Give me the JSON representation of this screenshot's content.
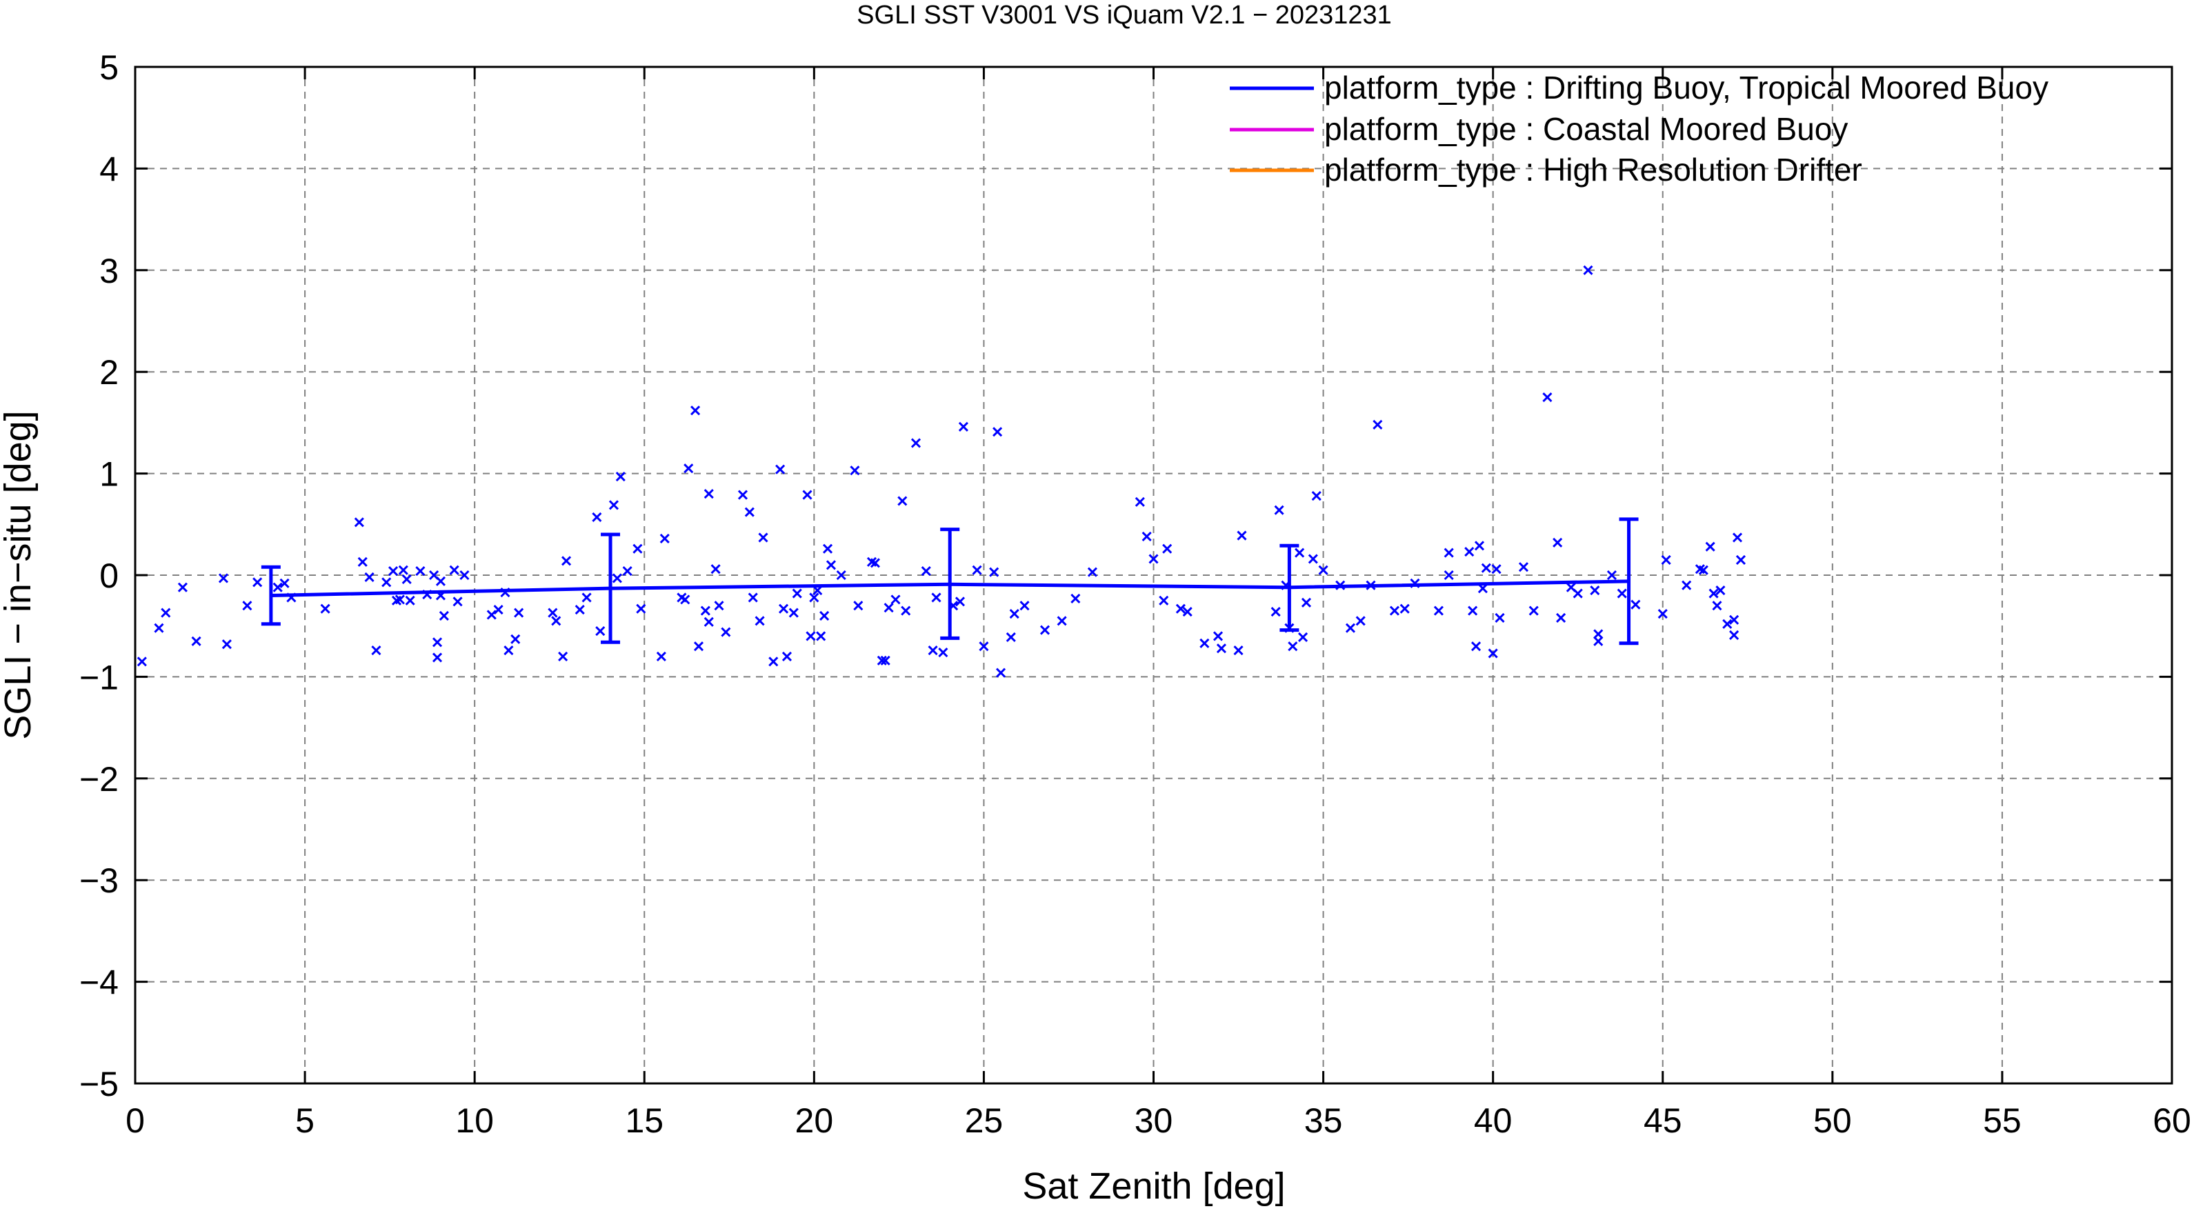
{
  "chart_data": {
    "type": "scatter",
    "title": "SGLI SST V3001 VS iQuam V2.1  − 20231231",
    "xlabel": "Sat Zenith [deg]",
    "ylabel": "SGLI − in−situ [deg]",
    "xlim": [
      0,
      60
    ],
    "ylim": [
      -5,
      5
    ],
    "x_ticks": [
      0,
      5,
      10,
      15,
      20,
      25,
      30,
      35,
      40,
      45,
      50,
      55,
      60
    ],
    "y_ticks": [
      -5,
      -4,
      -3,
      -2,
      -1,
      0,
      1,
      2,
      3,
      4,
      5
    ],
    "x_tick_labels": [
      "0",
      "5",
      "10",
      "15",
      "20",
      "25",
      "30",
      "35",
      "40",
      "45",
      "50",
      "55",
      "60"
    ],
    "y_tick_labels": [
      "−5",
      "−4",
      "−3",
      "−2",
      "−1",
      "0",
      "1",
      "2",
      "3",
      "4",
      "5"
    ],
    "grid": true,
    "legend_position": "top-right",
    "legend": [
      {
        "label": "platform_type : Drifting Buoy, Tropical Moored Buoy",
        "color": "#0000ff"
      },
      {
        "label": "platform_type : Coastal Moored Buoy",
        "color": "#e000e0"
      },
      {
        "label": "platform_type : High Resolution Drifter",
        "color": "#ff8000"
      }
    ],
    "series": [
      {
        "name": "platform_type : Drifting Buoy, Tropical Moored Buoy",
        "color": "#0000ff",
        "marker": "x",
        "points": [
          [
            0.2,
            -0.85
          ],
          [
            0.7,
            -0.52
          ],
          [
            0.9,
            -0.37
          ],
          [
            1.4,
            -0.12
          ],
          [
            1.8,
            -0.65
          ],
          [
            2.6,
            -0.03
          ],
          [
            2.7,
            -0.68
          ],
          [
            3.3,
            -0.3
          ],
          [
            3.6,
            -0.07
          ],
          [
            4.2,
            -0.12
          ],
          [
            4.4,
            -0.08
          ],
          [
            4.6,
            -0.22
          ],
          [
            5.6,
            -0.33
          ],
          [
            6.6,
            0.52
          ],
          [
            6.7,
            0.13
          ],
          [
            6.9,
            -0.02
          ],
          [
            7.1,
            -0.74
          ],
          [
            7.4,
            -0.07
          ],
          [
            7.6,
            0.04
          ],
          [
            7.7,
            -0.25
          ],
          [
            7.8,
            -0.24
          ],
          [
            7.9,
            0.05
          ],
          [
            8.0,
            -0.04
          ],
          [
            8.1,
            -0.25
          ],
          [
            8.4,
            0.04
          ],
          [
            8.6,
            -0.19
          ],
          [
            8.8,
            0.0
          ],
          [
            8.9,
            -0.66
          ],
          [
            8.9,
            -0.81
          ],
          [
            9.0,
            -0.06
          ],
          [
            9.1,
            -0.4
          ],
          [
            9.0,
            -0.2
          ],
          [
            9.4,
            0.05
          ],
          [
            9.5,
            -0.26
          ],
          [
            9.7,
            0.0
          ],
          [
            10.5,
            -0.39
          ],
          [
            10.7,
            -0.34
          ],
          [
            10.9,
            -0.17
          ],
          [
            11.0,
            -0.74
          ],
          [
            11.2,
            -0.63
          ],
          [
            11.3,
            -0.37
          ],
          [
            12.3,
            -0.37
          ],
          [
            12.4,
            -0.45
          ],
          [
            12.6,
            -0.8
          ],
          [
            12.7,
            0.14
          ],
          [
            13.1,
            -0.34
          ],
          [
            13.3,
            -0.22
          ],
          [
            13.6,
            0.57
          ],
          [
            13.7,
            -0.55
          ],
          [
            14.1,
            0.69
          ],
          [
            14.2,
            -0.03
          ],
          [
            14.3,
            0.97
          ],
          [
            14.5,
            0.04
          ],
          [
            14.8,
            0.26
          ],
          [
            14.9,
            -0.33
          ],
          [
            15.5,
            -0.8
          ],
          [
            15.6,
            0.36
          ],
          [
            16.1,
            -0.22
          ],
          [
            16.2,
            -0.24
          ],
          [
            16.3,
            1.05
          ],
          [
            16.5,
            1.62
          ],
          [
            16.6,
            -0.7
          ],
          [
            16.8,
            -0.35
          ],
          [
            16.9,
            -0.46
          ],
          [
            16.9,
            0.8
          ],
          [
            17.1,
            0.06
          ],
          [
            17.2,
            -0.3
          ],
          [
            17.4,
            -0.56
          ],
          [
            17.9,
            0.79
          ],
          [
            18.1,
            0.62
          ],
          [
            18.2,
            -0.22
          ],
          [
            18.5,
            0.37
          ],
          [
            18.4,
            -0.45
          ],
          [
            18.8,
            -0.85
          ],
          [
            19.0,
            1.04
          ],
          [
            19.1,
            -0.33
          ],
          [
            19.2,
            -0.8
          ],
          [
            19.4,
            -0.37
          ],
          [
            19.5,
            -0.18
          ],
          [
            19.8,
            0.79
          ],
          [
            19.9,
            -0.6
          ],
          [
            20.0,
            -0.22
          ],
          [
            20.1,
            -0.15
          ],
          [
            20.2,
            -0.6
          ],
          [
            20.3,
            -0.4
          ],
          [
            20.4,
            0.26
          ],
          [
            20.5,
            0.1
          ],
          [
            20.8,
            0.0
          ],
          [
            21.2,
            1.03
          ],
          [
            21.3,
            -0.3
          ],
          [
            21.7,
            0.13
          ],
          [
            21.8,
            0.12
          ],
          [
            22.0,
            -0.84
          ],
          [
            22.1,
            -0.84
          ],
          [
            22.2,
            -0.32
          ],
          [
            22.4,
            -0.24
          ],
          [
            22.6,
            0.73
          ],
          [
            22.7,
            -0.35
          ],
          [
            23.0,
            1.3
          ],
          [
            23.3,
            0.04
          ],
          [
            23.5,
            -0.74
          ],
          [
            23.6,
            -0.22
          ],
          [
            23.8,
            -0.76
          ],
          [
            24.1,
            -0.3
          ],
          [
            24.3,
            -0.26
          ],
          [
            24.4,
            1.46
          ],
          [
            24.8,
            0.05
          ],
          [
            25.0,
            -0.7
          ],
          [
            25.3,
            0.03
          ],
          [
            25.4,
            1.41
          ],
          [
            25.5,
            -0.96
          ],
          [
            25.8,
            -0.61
          ],
          [
            25.9,
            -0.38
          ],
          [
            26.2,
            -0.3
          ],
          [
            26.8,
            -0.54
          ],
          [
            27.3,
            -0.45
          ],
          [
            27.7,
            -0.23
          ],
          [
            28.2,
            0.03
          ],
          [
            29.6,
            0.72
          ],
          [
            29.8,
            0.38
          ],
          [
            30.0,
            0.16
          ],
          [
            30.3,
            -0.25
          ],
          [
            30.4,
            0.26
          ],
          [
            30.8,
            -0.33
          ],
          [
            31.0,
            -0.36
          ],
          [
            31.5,
            -0.67
          ],
          [
            31.9,
            -0.6
          ],
          [
            32.0,
            -0.72
          ],
          [
            32.5,
            -0.74
          ],
          [
            32.6,
            0.39
          ],
          [
            33.6,
            -0.36
          ],
          [
            33.7,
            0.64
          ],
          [
            33.9,
            -0.1
          ],
          [
            34.0,
            -0.52
          ],
          [
            34.1,
            -0.7
          ],
          [
            34.3,
            0.22
          ],
          [
            34.4,
            -0.61
          ],
          [
            34.5,
            -0.27
          ],
          [
            34.7,
            0.16
          ],
          [
            34.8,
            0.78
          ],
          [
            35.0,
            0.05
          ],
          [
            35.5,
            -0.1
          ],
          [
            35.8,
            -0.52
          ],
          [
            36.1,
            -0.45
          ],
          [
            36.4,
            -0.1
          ],
          [
            36.6,
            1.48
          ],
          [
            37.1,
            -0.35
          ],
          [
            37.4,
            -0.33
          ],
          [
            37.7,
            -0.08
          ],
          [
            38.4,
            -0.35
          ],
          [
            38.7,
            0.22
          ],
          [
            38.7,
            0.0
          ],
          [
            39.3,
            0.23
          ],
          [
            39.4,
            -0.35
          ],
          [
            39.5,
            -0.7
          ],
          [
            39.6,
            0.29
          ],
          [
            39.7,
            -0.13
          ],
          [
            39.8,
            0.07
          ],
          [
            40.0,
            -0.77
          ],
          [
            40.1,
            0.06
          ],
          [
            40.2,
            -0.42
          ],
          [
            40.9,
            0.08
          ],
          [
            41.2,
            -0.35
          ],
          [
            41.6,
            1.75
          ],
          [
            41.9,
            0.32
          ],
          [
            42.0,
            -0.42
          ],
          [
            42.3,
            -0.12
          ],
          [
            42.5,
            -0.18
          ],
          [
            42.8,
            3.0
          ],
          [
            43.0,
            -0.15
          ],
          [
            43.1,
            -0.58
          ],
          [
            43.1,
            -0.65
          ],
          [
            43.5,
            0.0
          ],
          [
            43.8,
            -0.18
          ],
          [
            44.2,
            -0.29
          ],
          [
            45.0,
            -0.38
          ],
          [
            45.1,
            0.15
          ],
          [
            45.7,
            -0.1
          ],
          [
            46.1,
            0.06
          ],
          [
            46.2,
            0.05
          ],
          [
            46.4,
            0.28
          ],
          [
            46.5,
            -0.18
          ],
          [
            46.6,
            -0.3
          ],
          [
            46.7,
            -0.15
          ],
          [
            46.9,
            -0.48
          ],
          [
            47.1,
            -0.44
          ],
          [
            47.1,
            -0.59
          ],
          [
            47.2,
            0.37
          ],
          [
            47.3,
            0.15
          ]
        ]
      }
    ],
    "binned_mean": {
      "series": "platform_type : Drifting Buoy, Tropical Moored Buoy",
      "x": [
        4,
        14,
        24,
        34,
        44
      ],
      "mean": [
        -0.2,
        -0.13,
        -0.09,
        -0.12,
        -0.06
      ],
      "lower": [
        -0.48,
        -0.66,
        -0.62,
        -0.54,
        -0.67
      ],
      "upper": [
        0.08,
        0.4,
        0.45,
        0.29,
        0.55
      ]
    }
  }
}
